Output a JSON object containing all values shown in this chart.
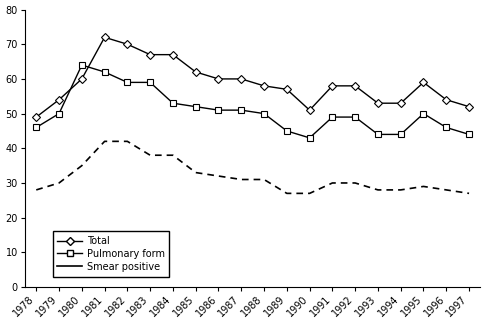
{
  "years": [
    1978,
    1979,
    1980,
    1981,
    1982,
    1983,
    1984,
    1985,
    1986,
    1987,
    1988,
    1989,
    1990,
    1991,
    1992,
    1993,
    1994,
    1995,
    1996,
    1997
  ],
  "total": [
    49,
    54,
    60,
    72,
    70,
    67,
    67,
    62,
    60,
    60,
    58,
    57,
    51,
    58,
    58,
    53,
    53,
    59,
    54,
    52
  ],
  "pulmonary": [
    46,
    50,
    64,
    62,
    59,
    59,
    53,
    52,
    51,
    51,
    50,
    45,
    43,
    49,
    49,
    44,
    44,
    50,
    46,
    44
  ],
  "smear": [
    28,
    30,
    35,
    42,
    42,
    38,
    38,
    33,
    32,
    31,
    31,
    27,
    27,
    30,
    30,
    28,
    28,
    29,
    28,
    27
  ],
  "ylim": [
    0,
    80
  ],
  "yticks": [
    0,
    10,
    20,
    30,
    40,
    50,
    60,
    70,
    80
  ],
  "line_color": "#000000",
  "background_color": "#ffffff",
  "legend_labels": [
    "Total",
    "Pulmonary form",
    "Smear positive"
  ],
  "figsize": [
    4.86,
    3.24
  ],
  "dpi": 100
}
